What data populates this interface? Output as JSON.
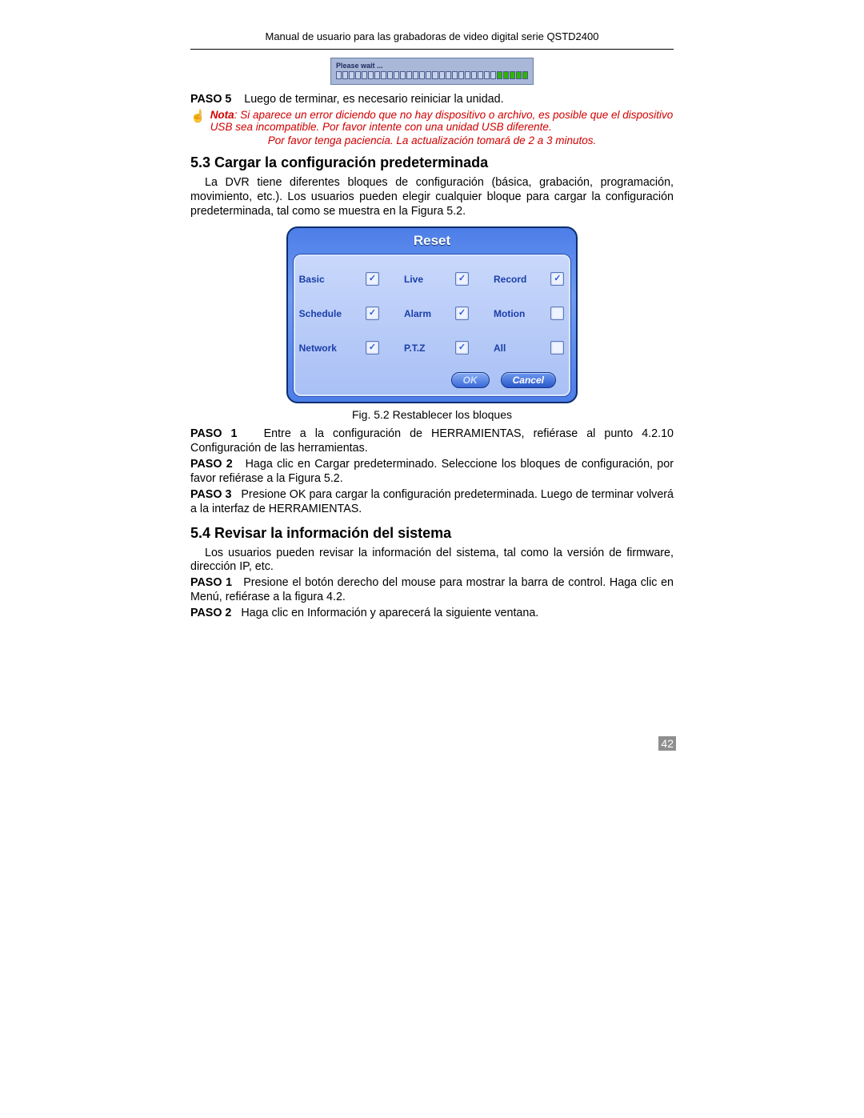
{
  "header": {
    "title": "Manual de usuario para las grabadoras de video digital serie QSTD2400"
  },
  "progress": {
    "label": "Please wait ...",
    "total_segments": 30,
    "filled_segments": 5,
    "empty_color": "#c6d2eb",
    "fill_color": "#2fb500",
    "border_color": "#4a5c8c",
    "bg": "#a9b7d8"
  },
  "paso5": {
    "label": "PASO 5",
    "text": "Luego de terminar, es necesario reiniciar la unidad."
  },
  "note": {
    "label": "Nota",
    "text": ": Si aparece un error diciendo que no hay dispositivo o archivo, es posible que el dispositivo USB sea incompatible. Por favor intente con una unidad USB diferente.",
    "line2": "Por favor tenga paciencia. La actualización tomará de 2 a 3 minutos.",
    "color": "#d10000"
  },
  "section53": {
    "heading": "5.3  Cargar la configuración predeterminada",
    "intro": "La DVR tiene diferentes bloques de configuración (básica, grabación, programación, movimiento, etc.). Los usuarios pueden elegir cualquier bloque para cargar la configuración predeterminada, tal como se muestra en la Figura 5.2."
  },
  "reset_dialog": {
    "title": "Reset",
    "title_color": "#ffffff",
    "frame_bg_from": "#4d7ee8",
    "frame_bg_to": "#6e9bf0",
    "body_bg_from": "#c9d8fb",
    "body_bg_to": "#a9c0f5",
    "label_color": "#1a3ea8",
    "items": [
      {
        "label": "Basic",
        "checked": true
      },
      {
        "label": "Live",
        "checked": true
      },
      {
        "label": "Record",
        "checked": true
      },
      {
        "label": "Schedule",
        "checked": true
      },
      {
        "label": "Alarm",
        "checked": true
      },
      {
        "label": "Motion",
        "checked": false
      },
      {
        "label": "Network",
        "checked": true
      },
      {
        "label": "P.T.Z",
        "checked": true
      },
      {
        "label": "All",
        "checked": false
      }
    ],
    "ok_label": "OK",
    "cancel_label": "Cancel"
  },
  "caption": "Fig. 5.2 Restablecer los bloques",
  "steps53": {
    "p1_label": "PASO 1",
    "p1": "Entre a la configuración de HERRAMIENTAS, refiérase al punto 4.2.10 Configuración de las herramientas.",
    "p2_label": "PASO 2",
    "p2": "Haga clic en Cargar predeterminado. Seleccione los bloques de configuración, por favor refiérase a la Figura 5.2.",
    "p3_label": "PASO 3",
    "p3": "Presione OK para cargar la configuración predeterminada. Luego de terminar volverá a la interfaz de HERRAMIENTAS."
  },
  "section54": {
    "heading": "5.4  Revisar la información del sistema",
    "intro": "Los usuarios pueden revisar la información del sistema, tal como la versión de firmware, dirección IP, etc.",
    "p1_label": "PASO 1",
    "p1": "Presione el botón derecho del mouse para mostrar la barra de control. Haga clic en Menú, refiérase a la figura 4.2.",
    "p2_label": "PASO 2",
    "p2": "Haga clic en Información y aparecerá la siguiente ventana."
  },
  "page_number": "42"
}
